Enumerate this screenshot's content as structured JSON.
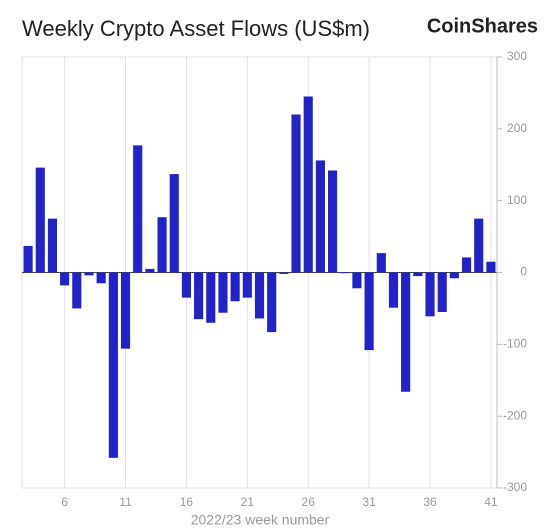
{
  "chart_data": {
    "type": "bar",
    "title": "Weekly Crypto Asset Flows (US$m)",
    "brand": "CoinShares",
    "xlabel": "2022/23 week number",
    "x": [
      3,
      4,
      5,
      6,
      7,
      8,
      9,
      10,
      11,
      12,
      13,
      14,
      15,
      16,
      17,
      18,
      19,
      20,
      21,
      22,
      23,
      24,
      25,
      26,
      27,
      28,
      29,
      30,
      31,
      32,
      33,
      34,
      35,
      36,
      37,
      38,
      39,
      40,
      41
    ],
    "values": [
      37,
      146,
      75,
      -18,
      -50,
      -4,
      -15,
      -258,
      -106,
      177,
      5,
      77,
      137,
      -35,
      -65,
      -70,
      -56,
      -40,
      -35,
      -64,
      -83,
      -2,
      220,
      245,
      156,
      142,
      -1,
      -22,
      -108,
      27,
      -49,
      -166,
      -5,
      -61,
      -55,
      -8,
      21,
      75,
      15
    ],
    "color": "#2222c8",
    "xlim": [
      2.5,
      41.5
    ],
    "xticks": [
      6,
      11,
      16,
      21,
      26,
      31,
      36,
      41
    ],
    "ylim": [
      -300,
      300
    ],
    "yticks": [
      300,
      200,
      100,
      0,
      -100,
      -200,
      -300
    ],
    "grid": true
  }
}
